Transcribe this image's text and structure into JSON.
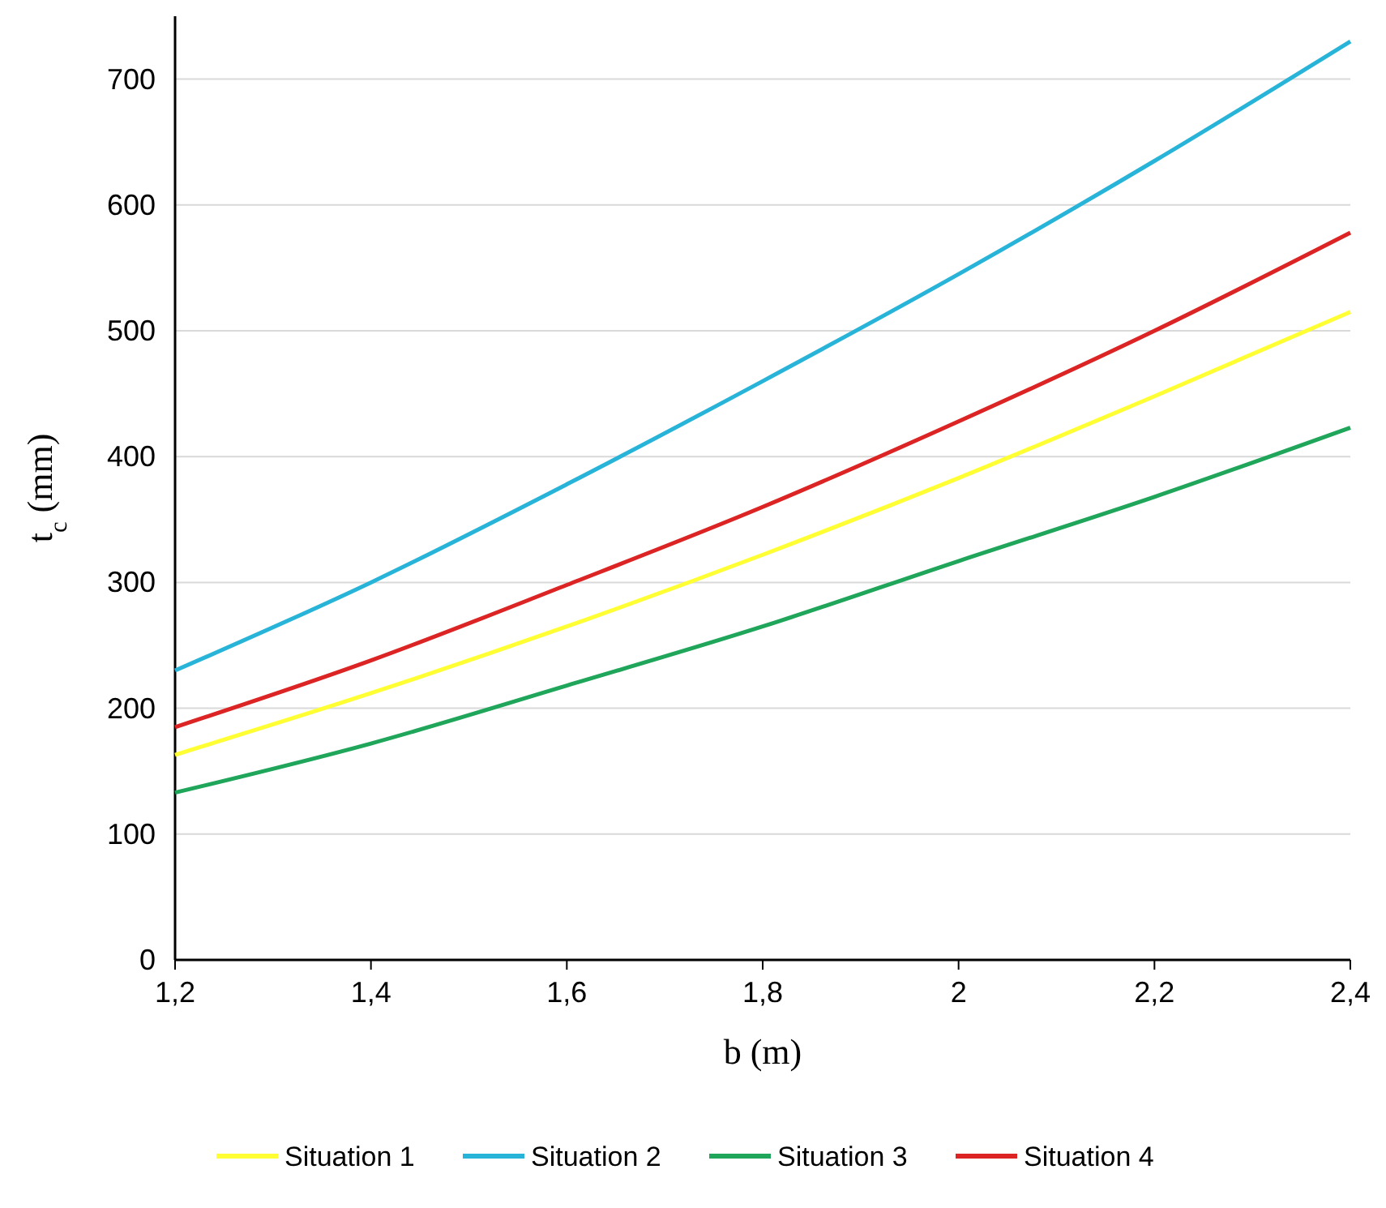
{
  "chart_data": {
    "type": "line",
    "xlabel": "b (m)",
    "ylabel": "t$_{c}$ (mm)",
    "x": [
      1.2,
      1.4,
      1.6,
      1.8,
      2.0,
      2.2,
      2.4
    ],
    "xlim": [
      1.2,
      2.4
    ],
    "xticks": [
      {
        "value": 1.2,
        "label": "1,2"
      },
      {
        "value": 1.4,
        "label": "1,4"
      },
      {
        "value": 1.6,
        "label": "1,6"
      },
      {
        "value": 1.8,
        "label": "1,8"
      },
      2,
      {
        "value": 2.2,
        "label": "2,2"
      },
      {
        "value": 2.4,
        "label": "2,4"
      }
    ],
    "ylim": [
      0,
      750
    ],
    "yticks": [
      0,
      100,
      200,
      300,
      400,
      500,
      600,
      700
    ],
    "grid": "y",
    "legend": "bottom",
    "marker": "none",
    "line_style": "solid",
    "series": [
      {
        "name": "Situation 1",
        "color": "#ffff33",
        "values": [
          163,
          212,
          265,
          322,
          383,
          448,
          515
        ]
      },
      {
        "name": "Situation 2",
        "color": "#27b4d8",
        "values": [
          230,
          300,
          378,
          460,
          545,
          635,
          730
        ]
      },
      {
        "name": "Situation 3",
        "color": "#1fa65a",
        "values": [
          133,
          172,
          218,
          265,
          317,
          368,
          423
        ]
      },
      {
        "name": "Situation 4",
        "color": "#dc2424",
        "values": [
          185,
          238,
          298,
          360,
          428,
          500,
          578
        ]
      }
    ]
  }
}
